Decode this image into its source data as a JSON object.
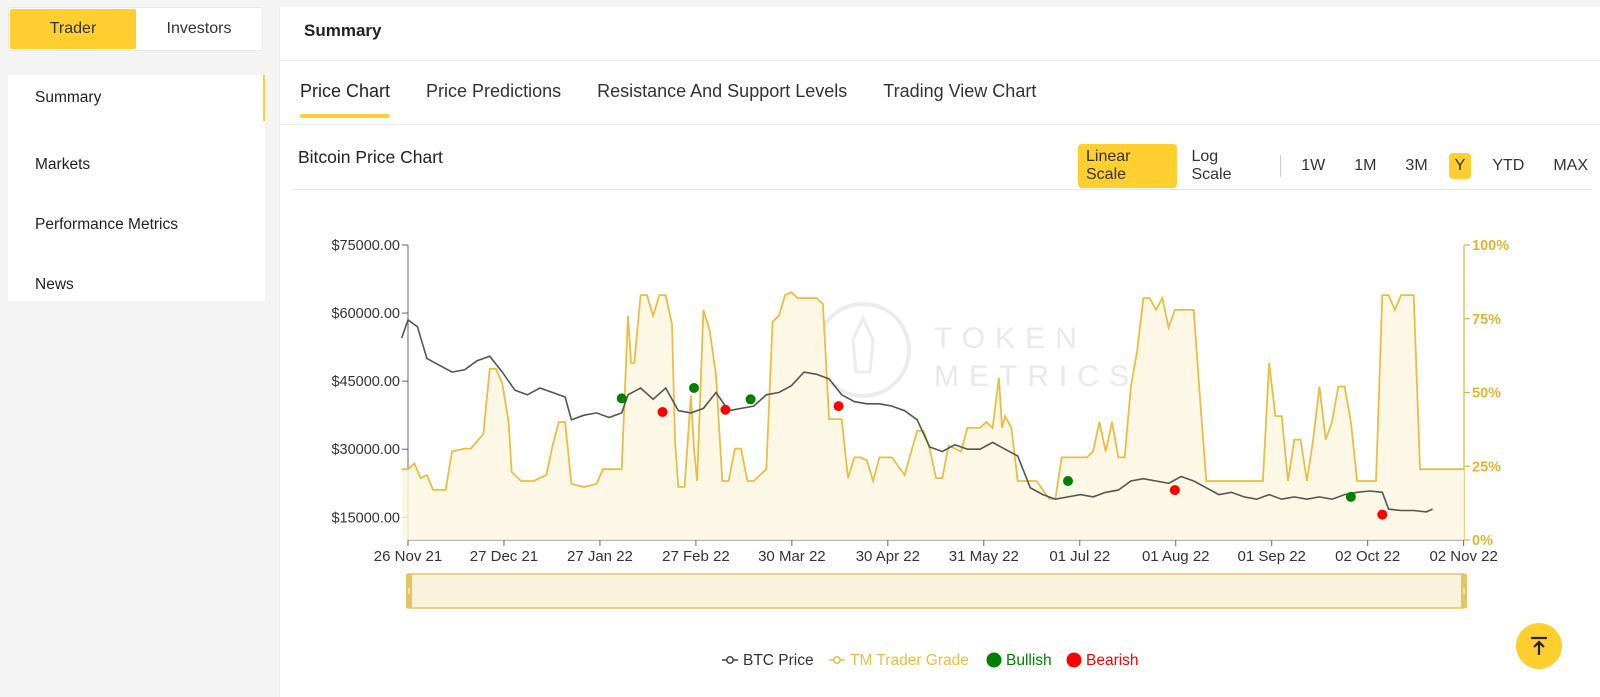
{
  "roles": [
    {
      "label": "Trader",
      "active": true
    },
    {
      "label": "Investors",
      "active": false
    }
  ],
  "sidebar": {
    "items": [
      {
        "label": "Summary",
        "active": true
      },
      {
        "label": "Markets"
      },
      {
        "label": "Performance Metrics"
      },
      {
        "label": "News"
      }
    ]
  },
  "header": {
    "title": "Summary"
  },
  "tabs": [
    {
      "label": "Price Chart",
      "active": true
    },
    {
      "label": "Price Predictions"
    },
    {
      "label": "Resistance And Support Levels"
    },
    {
      "label": "Trading View Chart"
    }
  ],
  "chart_panel": {
    "title": "Bitcoin Price Chart",
    "scales": [
      {
        "label": "Linear Scale",
        "active": true
      },
      {
        "label": "Log Scale"
      }
    ],
    "ranges": [
      {
        "label": "1W"
      },
      {
        "label": "1M"
      },
      {
        "label": "3M"
      },
      {
        "label": "Y",
        "active": true
      },
      {
        "label": "YTD"
      },
      {
        "label": "MAX"
      }
    ],
    "watermark": [
      "TOKEN",
      "METRICS"
    ]
  },
  "colors": {
    "accent": "#ffcf30",
    "btc_line": "#555555",
    "grade_line": "#e8bf45",
    "bullish": "#008000",
    "bearish": "#ff0000"
  },
  "chart_data": {
    "type": "line",
    "y_left_ticks": [
      "$15000.00",
      "$30000.00",
      "$45000.00",
      "$60000.00",
      "$75000.00"
    ],
    "y_left_range": [
      10000,
      75000
    ],
    "y_right_ticks": [
      "0%",
      "25%",
      "50%",
      "75%",
      "100%"
    ],
    "y_right_range": [
      0,
      100
    ],
    "x_ticks": [
      "26 Nov 21",
      "27 Dec 21",
      "27 Jan 22",
      "27 Feb 22",
      "30 Mar 22",
      "30 Apr 22",
      "31 May 22",
      "01 Jul 22",
      "01 Aug 22",
      "01 Sep 22",
      "02 Oct 22",
      "02 Nov 22"
    ],
    "legend": [
      {
        "name": "BTC Price",
        "color": "#444444",
        "marker": "line"
      },
      {
        "name": "TM Trader Grade",
        "color": "#e8bf45",
        "marker": "line"
      },
      {
        "name": "Bullish",
        "color": "#008000",
        "marker": "dot"
      },
      {
        "name": "Bearish",
        "color": "#ff0000",
        "marker": "dot"
      }
    ],
    "btc_price": [
      [
        -2,
        54500
      ],
      [
        0,
        58500
      ],
      [
        3,
        57000
      ],
      [
        6,
        50000
      ],
      [
        10,
        48500
      ],
      [
        14,
        47000
      ],
      [
        18,
        47500
      ],
      [
        22,
        49500
      ],
      [
        26,
        50500
      ],
      [
        30,
        47000
      ],
      [
        34,
        43000
      ],
      [
        38,
        42000
      ],
      [
        42,
        43500
      ],
      [
        46,
        42500
      ],
      [
        50,
        41500
      ],
      [
        52,
        36500
      ],
      [
        56,
        37500
      ],
      [
        60,
        38000
      ],
      [
        64,
        37000
      ],
      [
        68,
        38000
      ],
      [
        70,
        42000
      ],
      [
        74,
        43500
      ],
      [
        78,
        41000
      ],
      [
        82,
        43500
      ],
      [
        86,
        38500
      ],
      [
        90,
        38000
      ],
      [
        94,
        39000
      ],
      [
        98,
        42500
      ],
      [
        102,
        38500
      ],
      [
        106,
        39000
      ],
      [
        110,
        39500
      ],
      [
        114,
        42000
      ],
      [
        118,
        42500
      ],
      [
        122,
        44000
      ],
      [
        126,
        47000
      ],
      [
        130,
        46500
      ],
      [
        134,
        45500
      ],
      [
        138,
        42000
      ],
      [
        142,
        40500
      ],
      [
        146,
        40000
      ],
      [
        150,
        40000
      ],
      [
        154,
        39500
      ],
      [
        158,
        38500
      ],
      [
        162,
        36500
      ],
      [
        166,
        30500
      ],
      [
        170,
        29500
      ],
      [
        174,
        31000
      ],
      [
        178,
        30000
      ],
      [
        182,
        30000
      ],
      [
        186,
        31500
      ],
      [
        190,
        30000
      ],
      [
        194,
        28500
      ],
      [
        198,
        21500
      ],
      [
        202,
        20000
      ],
      [
        206,
        19000
      ],
      [
        210,
        19500
      ],
      [
        214,
        20000
      ],
      [
        218,
        19500
      ],
      [
        222,
        20500
      ],
      [
        226,
        21000
      ],
      [
        230,
        23000
      ],
      [
        234,
        23500
      ],
      [
        238,
        23000
      ],
      [
        242,
        22500
      ],
      [
        246,
        24000
      ],
      [
        250,
        23000
      ],
      [
        254,
        21500
      ],
      [
        258,
        20000
      ],
      [
        262,
        20500
      ],
      [
        266,
        19500
      ],
      [
        270,
        19000
      ],
      [
        274,
        20000
      ],
      [
        278,
        19000
      ],
      [
        282,
        19500
      ],
      [
        286,
        19000
      ],
      [
        290,
        19500
      ],
      [
        294,
        19000
      ],
      [
        298,
        20000
      ],
      [
        302,
        20500
      ],
      [
        306,
        20800
      ],
      [
        310,
        20500
      ],
      [
        312,
        16800
      ],
      [
        316,
        16500
      ],
      [
        320,
        16500
      ],
      [
        324,
        16200
      ],
      [
        326,
        16800
      ]
    ],
    "trader_grade": [
      [
        -2,
        24
      ],
      [
        0,
        24
      ],
      [
        2,
        26
      ],
      [
        4,
        21
      ],
      [
        6,
        22
      ],
      [
        8,
        17
      ],
      [
        12,
        17
      ],
      [
        14,
        30
      ],
      [
        18,
        31
      ],
      [
        20,
        31
      ],
      [
        24,
        36
      ],
      [
        26,
        58
      ],
      [
        28,
        58
      ],
      [
        30,
        53
      ],
      [
        32,
        40
      ],
      [
        33,
        23
      ],
      [
        36,
        20
      ],
      [
        40,
        20
      ],
      [
        44,
        22
      ],
      [
        46,
        32
      ],
      [
        48,
        40
      ],
      [
        50,
        40
      ],
      [
        52,
        19
      ],
      [
        56,
        18
      ],
      [
        60,
        19
      ],
      [
        62,
        24
      ],
      [
        64,
        24
      ],
      [
        68,
        24
      ],
      [
        70,
        76
      ],
      [
        71,
        60
      ],
      [
        72,
        60
      ],
      [
        74,
        83
      ],
      [
        76,
        83
      ],
      [
        78,
        76
      ],
      [
        80,
        83
      ],
      [
        82,
        83
      ],
      [
        84,
        73
      ],
      [
        85,
        33
      ],
      [
        86,
        18
      ],
      [
        88,
        18
      ],
      [
        90,
        49
      ],
      [
        91,
        31
      ],
      [
        92,
        20
      ],
      [
        94,
        78
      ],
      [
        96,
        71
      ],
      [
        98,
        56
      ],
      [
        100,
        20
      ],
      [
        102,
        20
      ],
      [
        104,
        31
      ],
      [
        106,
        31
      ],
      [
        108,
        20
      ],
      [
        110,
        20
      ],
      [
        114,
        24
      ],
      [
        116,
        74
      ],
      [
        118,
        76
      ],
      [
        120,
        83
      ],
      [
        122,
        84
      ],
      [
        124,
        82
      ],
      [
        128,
        82
      ],
      [
        130,
        82
      ],
      [
        132,
        80
      ],
      [
        134,
        41
      ],
      [
        136,
        41
      ],
      [
        138,
        41
      ],
      [
        140,
        21
      ],
      [
        142,
        28
      ],
      [
        144,
        28
      ],
      [
        146,
        27
      ],
      [
        148,
        20
      ],
      [
        150,
        28
      ],
      [
        152,
        28
      ],
      [
        154,
        28
      ],
      [
        158,
        22
      ],
      [
        162,
        37
      ],
      [
        164,
        37
      ],
      [
        166,
        31
      ],
      [
        168,
        21
      ],
      [
        170,
        21
      ],
      [
        172,
        32
      ],
      [
        174,
        31
      ],
      [
        176,
        30
      ],
      [
        178,
        38
      ],
      [
        182,
        38
      ],
      [
        184,
        40
      ],
      [
        186,
        38
      ],
      [
        188,
        55
      ],
      [
        189,
        38
      ],
      [
        190,
        42
      ],
      [
        192,
        38
      ],
      [
        194,
        20
      ],
      [
        196,
        20
      ],
      [
        200,
        20
      ],
      [
        204,
        14
      ],
      [
        206,
        14
      ],
      [
        208,
        28
      ],
      [
        212,
        28
      ],
      [
        216,
        28
      ],
      [
        218,
        30
      ],
      [
        220,
        40
      ],
      [
        222,
        30
      ],
      [
        224,
        40
      ],
      [
        226,
        28
      ],
      [
        228,
        28
      ],
      [
        230,
        52
      ],
      [
        232,
        64
      ],
      [
        234,
        82
      ],
      [
        236,
        82
      ],
      [
        238,
        78
      ],
      [
        240,
        82
      ],
      [
        242,
        72
      ],
      [
        244,
        78
      ],
      [
        246,
        78
      ],
      [
        250,
        78
      ],
      [
        252,
        48
      ],
      [
        254,
        20
      ],
      [
        256,
        20
      ],
      [
        258,
        20
      ],
      [
        260,
        20
      ],
      [
        262,
        20
      ],
      [
        264,
        20
      ],
      [
        268,
        20
      ],
      [
        270,
        20
      ],
      [
        272,
        20
      ],
      [
        274,
        60
      ],
      [
        276,
        42
      ],
      [
        278,
        42
      ],
      [
        280,
        20
      ],
      [
        282,
        34
      ],
      [
        284,
        34
      ],
      [
        286,
        20
      ],
      [
        288,
        34
      ],
      [
        290,
        52
      ],
      [
        292,
        34
      ],
      [
        294,
        40
      ],
      [
        296,
        52
      ],
      [
        298,
        52
      ],
      [
        300,
        40
      ],
      [
        302,
        20
      ],
      [
        304,
        20
      ],
      [
        306,
        20
      ],
      [
        308,
        20
      ],
      [
        310,
        83
      ],
      [
        312,
        83
      ],
      [
        314,
        78
      ],
      [
        316,
        83
      ],
      [
        318,
        83
      ],
      [
        320,
        83
      ],
      [
        322,
        24
      ],
      [
        326,
        24
      ],
      [
        330,
        24
      ],
      [
        336,
        24
      ]
    ],
    "bullish_signals": [
      [
        68,
        41200
      ],
      [
        91,
        43500
      ],
      [
        109,
        41000
      ],
      [
        210,
        23000
      ],
      [
        300,
        19500
      ]
    ],
    "bearish_signals": [
      [
        81,
        38200
      ],
      [
        101,
        38700
      ],
      [
        137,
        39500
      ],
      [
        244,
        21000
      ],
      [
        310,
        15600
      ]
    ]
  },
  "nav": {
    "scroll_top_icon": "arrow-up-to-line-icon"
  }
}
